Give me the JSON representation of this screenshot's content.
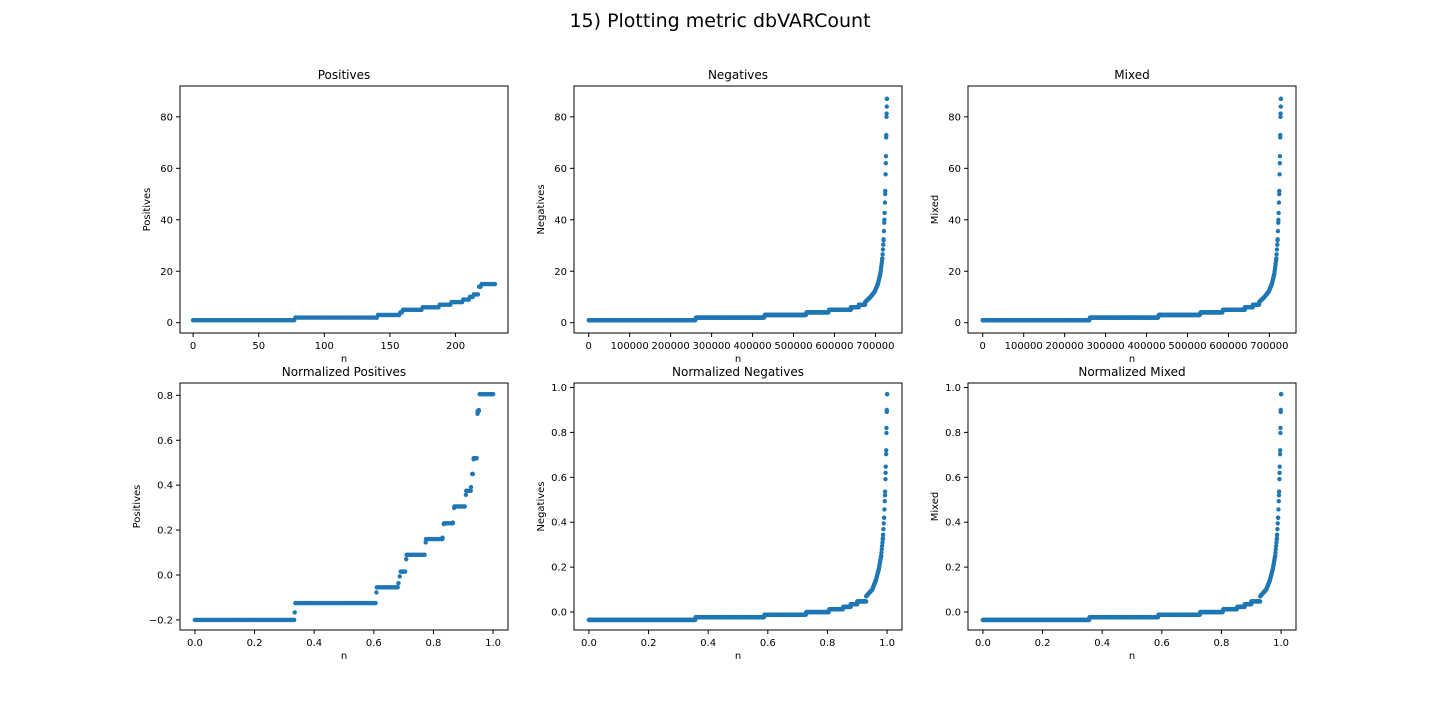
{
  "figure": {
    "suptitle": "15) Plotting metric dbVARCount",
    "marker_color": "#1f77b4"
  },
  "chart_data": [
    {
      "id": "positives",
      "type": "scatter",
      "title": "Positives",
      "xlabel": "n",
      "ylabel": "Positives",
      "xlim": [
        -10,
        240
      ],
      "ylim": [
        -4,
        92
      ],
      "xticks": [
        0,
        50,
        100,
        150,
        200
      ],
      "xtick_labels": [
        "0",
        "50",
        "100",
        "150",
        "200"
      ],
      "yticks": [
        0,
        20,
        40,
        60,
        80
      ],
      "ytick_labels": [
        "0",
        "20",
        "40",
        "60",
        "80"
      ],
      "grid": false,
      "series_steps": [
        [
          0,
          1
        ],
        [
          77,
          1
        ],
        [
          78,
          2
        ],
        [
          140,
          2
        ],
        [
          141,
          3
        ],
        [
          157,
          3
        ],
        [
          158,
          4
        ],
        [
          159,
          4
        ],
        [
          160,
          5
        ],
        [
          174,
          5
        ],
        [
          175,
          6
        ],
        [
          187,
          6
        ],
        [
          188,
          7
        ],
        [
          196,
          7
        ],
        [
          197,
          8
        ],
        [
          205,
          8
        ],
        [
          206,
          9
        ],
        [
          210,
          9
        ],
        [
          211,
          10
        ],
        [
          213,
          10
        ],
        [
          214,
          11
        ],
        [
          217,
          11
        ],
        [
          218,
          14
        ],
        [
          219,
          14
        ],
        [
          220,
          15
        ],
        [
          230,
          15
        ]
      ]
    },
    {
      "id": "negatives",
      "type": "scatter",
      "title": "Negatives",
      "xlabel": "n",
      "ylabel": "Negatives",
      "xlim": [
        -36000,
        765000
      ],
      "ylim": [
        -4,
        92
      ],
      "xticks": [
        0,
        100000,
        200000,
        300000,
        400000,
        500000,
        600000,
        700000
      ],
      "xtick_labels": [
        "0",
        "100000",
        "200000",
        "300000",
        "400000",
        "500000",
        "600000",
        "700000"
      ],
      "yticks": [
        0,
        20,
        40,
        60,
        80
      ],
      "ytick_labels": [
        "0",
        "20",
        "40",
        "60",
        "80"
      ],
      "grid": false,
      "series_steps": [
        [
          0,
          1
        ],
        [
          260000,
          1
        ],
        [
          262000,
          2
        ],
        [
          428000,
          2
        ],
        [
          430000,
          3
        ],
        [
          530000,
          3
        ],
        [
          532000,
          4
        ],
        [
          585000,
          4
        ],
        [
          587000,
          5
        ],
        [
          620000,
          5
        ],
        [
          640000,
          6
        ],
        [
          660000,
          7
        ],
        [
          675000,
          8
        ],
        [
          688000,
          10
        ],
        [
          698000,
          12
        ],
        [
          706000,
          15
        ],
        [
          712000,
          19
        ],
        [
          717000,
          25
        ],
        [
          720000,
          32
        ],
        [
          722000,
          40
        ],
        [
          724000,
          50
        ],
        [
          725500,
          62
        ],
        [
          726500,
          72
        ],
        [
          727200,
          80
        ],
        [
          727800,
          84
        ],
        [
          728200,
          87
        ]
      ]
    },
    {
      "id": "mixed",
      "type": "scatter",
      "title": "Mixed",
      "xlabel": "n",
      "ylabel": "Mixed",
      "xlim": [
        -36000,
        765000
      ],
      "ylim": [
        -4,
        92
      ],
      "xticks": [
        0,
        100000,
        200000,
        300000,
        400000,
        500000,
        600000,
        700000
      ],
      "xtick_labels": [
        "0",
        "100000",
        "200000",
        "300000",
        "400000",
        "500000",
        "600000",
        "700000"
      ],
      "yticks": [
        0,
        20,
        40,
        60,
        80
      ],
      "ytick_labels": [
        "0",
        "20",
        "40",
        "60",
        "80"
      ],
      "grid": false,
      "series_steps": [
        [
          0,
          1
        ],
        [
          260000,
          1
        ],
        [
          262000,
          2
        ],
        [
          428000,
          2
        ],
        [
          430000,
          3
        ],
        [
          530000,
          3
        ],
        [
          532000,
          4
        ],
        [
          585000,
          4
        ],
        [
          587000,
          5
        ],
        [
          620000,
          5
        ],
        [
          640000,
          6
        ],
        [
          660000,
          7
        ],
        [
          675000,
          8
        ],
        [
          688000,
          10
        ],
        [
          698000,
          12
        ],
        [
          706000,
          15
        ],
        [
          712000,
          19
        ],
        [
          717000,
          25
        ],
        [
          720000,
          32
        ],
        [
          722000,
          40
        ],
        [
          724000,
          50
        ],
        [
          725500,
          62
        ],
        [
          726500,
          72
        ],
        [
          727200,
          80
        ],
        [
          727800,
          84
        ],
        [
          728200,
          87
        ]
      ]
    },
    {
      "id": "normalized-positives",
      "type": "scatter",
      "title": "Normalized Positives",
      "xlabel": "n",
      "ylabel": "Positives",
      "xlim": [
        -0.05,
        1.05
      ],
      "ylim": [
        -0.245,
        0.855
      ],
      "xticks": [
        0.0,
        0.2,
        0.4,
        0.6,
        0.8,
        1.0
      ],
      "xtick_labels": [
        "0.0",
        "0.2",
        "0.4",
        "0.6",
        "0.8",
        "1.0"
      ],
      "yticks": [
        -0.2,
        0.0,
        0.2,
        0.4,
        0.6,
        0.8
      ],
      "ytick_labels": [
        "−0.2",
        "0.0",
        "0.2",
        "0.4",
        "0.6",
        "0.8"
      ],
      "grid": false,
      "series_steps": [
        [
          0.0,
          -0.2
        ],
        [
          0.333,
          -0.2
        ],
        [
          0.337,
          -0.125
        ],
        [
          0.606,
          -0.125
        ],
        [
          0.61,
          -0.055
        ],
        [
          0.68,
          -0.055
        ],
        [
          0.69,
          0.015
        ],
        [
          0.705,
          0.015
        ],
        [
          0.71,
          0.09
        ],
        [
          0.77,
          0.09
        ],
        [
          0.775,
          0.16
        ],
        [
          0.83,
          0.16
        ],
        [
          0.835,
          0.23
        ],
        [
          0.865,
          0.23
        ],
        [
          0.87,
          0.305
        ],
        [
          0.905,
          0.305
        ],
        [
          0.91,
          0.375
        ],
        [
          0.925,
          0.375
        ],
        [
          0.93,
          0.45
        ],
        [
          0.932,
          0.45
        ],
        [
          0.935,
          0.52
        ],
        [
          0.945,
          0.52
        ],
        [
          0.948,
          0.73
        ],
        [
          0.952,
          0.73
        ],
        [
          0.955,
          0.805
        ],
        [
          1.0,
          0.805
        ]
      ]
    },
    {
      "id": "normalized-negatives",
      "type": "scatter",
      "title": "Normalized Negatives",
      "xlabel": "n",
      "ylabel": "Negatives",
      "xlim": [
        -0.05,
        1.05
      ],
      "ylim": [
        -0.08,
        1.02
      ],
      "xticks": [
        0.0,
        0.2,
        0.4,
        0.6,
        0.8,
        1.0
      ],
      "xtick_labels": [
        "0.0",
        "0.2",
        "0.4",
        "0.6",
        "0.8",
        "1.0"
      ],
      "yticks": [
        0.0,
        0.2,
        0.4,
        0.6,
        0.8,
        1.0
      ],
      "ytick_labels": [
        "0.0",
        "0.2",
        "0.4",
        "0.6",
        "0.8",
        "1.0"
      ],
      "grid": false,
      "series_steps": [
        [
          0.0,
          -0.035
        ],
        [
          0.356,
          -0.035
        ],
        [
          0.358,
          -0.023
        ],
        [
          0.587,
          -0.023
        ],
        [
          0.589,
          -0.012
        ],
        [
          0.727,
          -0.012
        ],
        [
          0.729,
          0.0
        ],
        [
          0.804,
          0.0
        ],
        [
          0.806,
          0.012
        ],
        [
          0.851,
          0.012
        ],
        [
          0.853,
          0.023
        ],
        [
          0.878,
          0.035
        ],
        [
          0.9,
          0.047
        ],
        [
          0.93,
          0.07
        ],
        [
          0.95,
          0.1
        ],
        [
          0.962,
          0.14
        ],
        [
          0.972,
          0.19
        ],
        [
          0.98,
          0.25
        ],
        [
          0.986,
          0.33
        ],
        [
          0.99,
          0.42
        ],
        [
          0.993,
          0.52
        ],
        [
          0.995,
          0.62
        ],
        [
          0.997,
          0.72
        ],
        [
          0.998,
          0.82
        ],
        [
          0.999,
          0.9
        ],
        [
          1.0,
          0.97
        ]
      ]
    },
    {
      "id": "normalized-mixed",
      "type": "scatter",
      "title": "Normalized Mixed",
      "xlabel": "n",
      "ylabel": "Mixed",
      "xlim": [
        -0.05,
        1.05
      ],
      "ylim": [
        -0.08,
        1.02
      ],
      "xticks": [
        0.0,
        0.2,
        0.4,
        0.6,
        0.8,
        1.0
      ],
      "xtick_labels": [
        "0.0",
        "0.2",
        "0.4",
        "0.6",
        "0.8",
        "1.0"
      ],
      "yticks": [
        0.0,
        0.2,
        0.4,
        0.6,
        0.8,
        1.0
      ],
      "ytick_labels": [
        "0.0",
        "0.2",
        "0.4",
        "0.6",
        "0.8",
        "1.0"
      ],
      "grid": false,
      "series_steps": [
        [
          0.0,
          -0.035
        ],
        [
          0.356,
          -0.035
        ],
        [
          0.358,
          -0.023
        ],
        [
          0.587,
          -0.023
        ],
        [
          0.589,
          -0.012
        ],
        [
          0.727,
          -0.012
        ],
        [
          0.729,
          0.0
        ],
        [
          0.804,
          0.0
        ],
        [
          0.806,
          0.012
        ],
        [
          0.851,
          0.012
        ],
        [
          0.853,
          0.023
        ],
        [
          0.878,
          0.035
        ],
        [
          0.9,
          0.047
        ],
        [
          0.93,
          0.07
        ],
        [
          0.95,
          0.1
        ],
        [
          0.962,
          0.14
        ],
        [
          0.972,
          0.19
        ],
        [
          0.98,
          0.25
        ],
        [
          0.986,
          0.33
        ],
        [
          0.99,
          0.42
        ],
        [
          0.993,
          0.52
        ],
        [
          0.995,
          0.62
        ],
        [
          0.997,
          0.72
        ],
        [
          0.998,
          0.82
        ],
        [
          0.999,
          0.9
        ],
        [
          1.0,
          0.97
        ]
      ]
    }
  ]
}
